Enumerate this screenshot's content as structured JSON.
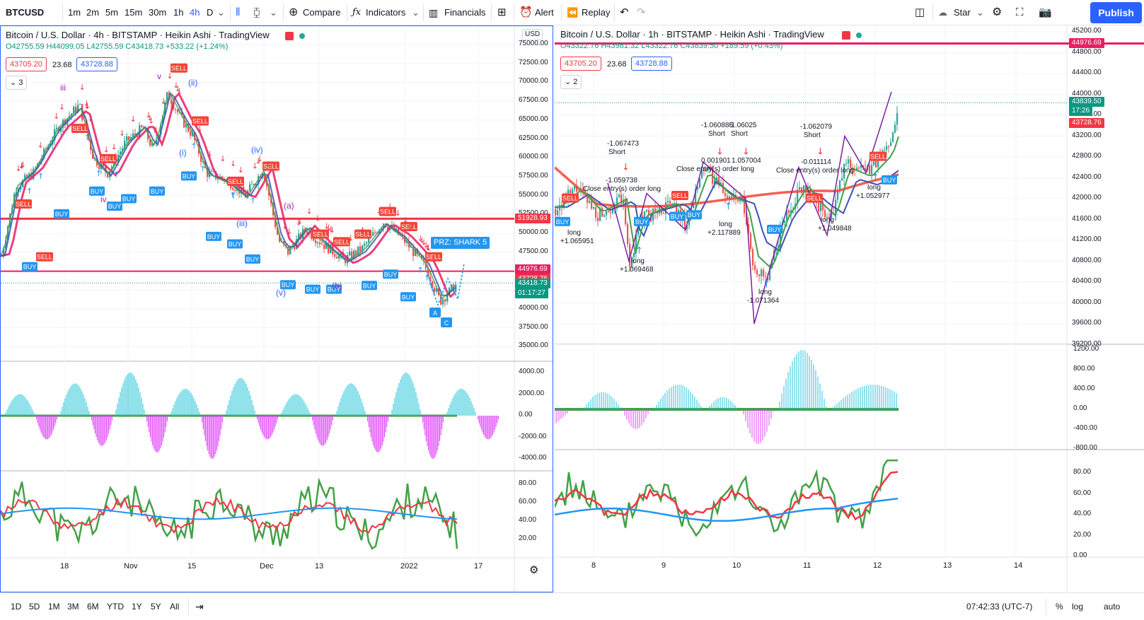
{
  "toolbar": {
    "symbol": "BTCUSD",
    "intervals": [
      "1m",
      "2m",
      "5m",
      "15m",
      "30m",
      "1h",
      "4h",
      "D"
    ],
    "active_interval": "4h",
    "compare": "Compare",
    "indicators": "Indicators",
    "financials": "Financials",
    "alert": "Alert",
    "replay": "Replay",
    "layout_name": "Star",
    "publish": "Publish"
  },
  "left_chart": {
    "title": "Bitcoin / U.S. Dollar · 4h · BITSTAMP · Heikin Ashi · TradingView",
    "ohlc": "O42755.59 H44099.05 L42755.59 C43418.73 +533.22 (+1.24%)",
    "box_red": "43705.20",
    "box_mid": "23.68",
    "box_blue": "43728.88",
    "collapse_count": "3",
    "currency": "USD",
    "price_ticks": [
      "75000.00",
      "72500.00",
      "70000.00",
      "67500.00",
      "65000.00",
      "62500.00",
      "60000.00",
      "57500.00",
      "55000.00",
      "52500.00",
      "50000.00",
      "47500.00",
      "45000.00",
      "42500.00",
      "40000.00",
      "37500.00",
      "35000.00"
    ],
    "price_tags": {
      "red_line": "51928.93",
      "pink_line": "44976.69",
      "last_a": "43728.76",
      "last_b": "43418.73",
      "countdown": "01:17:27"
    },
    "osc_ticks": [
      "4000.00",
      "2000.00",
      "0.00",
      "-2000.00",
      "-4000.00"
    ],
    "rsi_ticks": [
      "80.00",
      "60.00",
      "40.00",
      "20.00"
    ],
    "time_ticks": [
      "18",
      "Nov",
      "15",
      "Dec",
      "13",
      "2022",
      "17"
    ],
    "prz_label": "PRZ: SHARK 5",
    "wave_labels": [
      "(i)",
      "(ii)",
      "(iii)",
      "(iv)",
      "(v)",
      "(a)",
      "(b)",
      "iii",
      "iv",
      "v"
    ],
    "abc": [
      "A",
      "C"
    ]
  },
  "right_chart": {
    "title": "Bitcoin / U.S. Dollar · 1h · BITSTAMP · Heikin Ashi · TradingView",
    "ohlc": "O43322.76 H43981.32 L43322.76 C43839.50 +189.59 (+0.43%)",
    "box_red": "43705.20",
    "box_mid": "23.68",
    "box_blue": "43728.88",
    "collapse_count": "2",
    "price_ticks": [
      "45200.00",
      "44800.00",
      "44400.00",
      "44000.00",
      "43600.00",
      "43200.00",
      "42800.00",
      "42400.00",
      "42000.00",
      "41600.00",
      "41200.00",
      "40800.00",
      "40400.00",
      "40000.00",
      "39600.00",
      "39200.00"
    ],
    "price_tags": {
      "pink_line": "44976.69",
      "last_a": "43839.50",
      "countdown": "17:26",
      "last_b": "43728.76"
    },
    "osc_ticks": [
      "1200.00",
      "800.00",
      "400.00",
      "0.00",
      "-400.00",
      "-800.00"
    ],
    "rsi_ticks": [
      "80.00",
      "60.00",
      "40.00",
      "20.00",
      "0.00"
    ],
    "time_ticks": [
      "8",
      "9",
      "10",
      "11",
      "12",
      "13",
      "14"
    ],
    "annotations": [
      "-1.067473",
      "Short",
      "-1.059738",
      "Close entry(s) order long",
      "-1.060885",
      "Short",
      "-1.06025",
      "Short",
      "0.001901",
      "1.057004",
      "Close entry(s) order long",
      "-1.062079",
      "Short",
      "-0.011114",
      "Close entry(s) order long",
      "long",
      "+1.065951",
      "long",
      "+1.069468",
      "long",
      "+2.117889",
      "long",
      "-1.071364",
      "long",
      "+1.049848",
      "long",
      "+1.052977"
    ]
  },
  "bottom": {
    "ranges": [
      "1D",
      "5D",
      "1M",
      "3M",
      "6M",
      "YTD",
      "1Y",
      "5Y",
      "All"
    ],
    "time": "07:42:33 (UTC-7)",
    "pct": "%",
    "log": "log",
    "auto": "auto"
  },
  "colors": {
    "accent": "#2962ff",
    "buy": "#2196f3",
    "sell": "#f44336",
    "green": "#43a047",
    "cyan": "#26c6da",
    "magenta": "#e040fb",
    "pink": "#e91e63"
  }
}
